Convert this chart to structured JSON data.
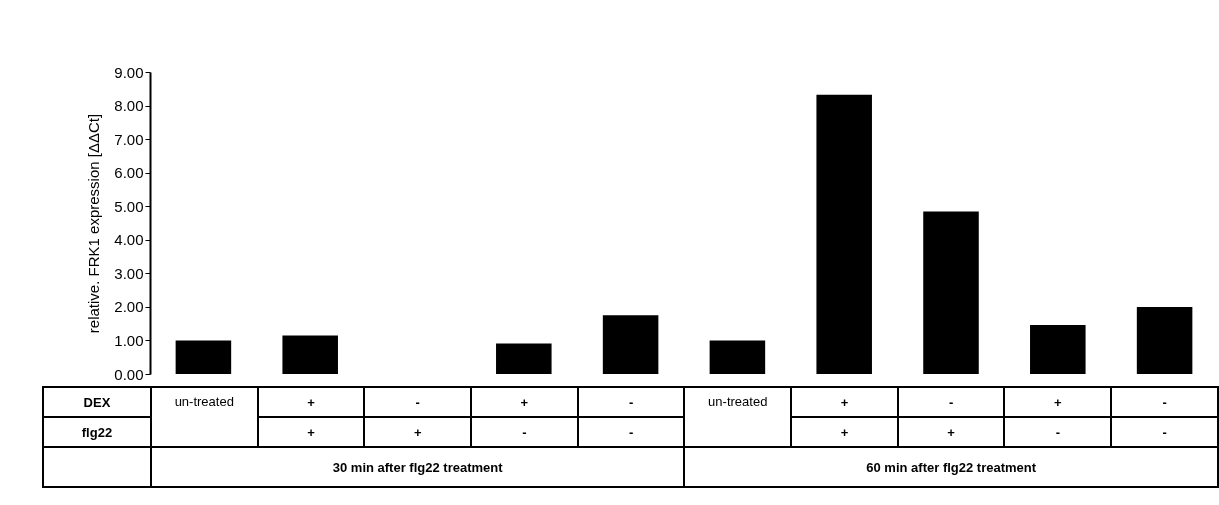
{
  "chart_data": {
    "type": "bar",
    "ylabel": "relative. FRK1 expression [ΔΔCt]",
    "categories": [
      "un-treated",
      "+",
      "-",
      "+",
      "-",
      "un-treated",
      "+",
      "-",
      "+",
      "-"
    ],
    "values": [
      1.0,
      1.15,
      null,
      0.91,
      1.75,
      1.0,
      8.32,
      4.84,
      1.46,
      2.0
    ],
    "color": "#000000",
    "ylim": [
      0,
      9
    ],
    "yticks": [
      {
        "value": 0,
        "label": "0.00"
      },
      {
        "value": 1,
        "label": "1.00"
      },
      {
        "value": 2,
        "label": "2.00"
      },
      {
        "value": 3,
        "label": "3.00"
      },
      {
        "value": 4,
        "label": "4.00"
      },
      {
        "value": 5,
        "label": "5.00"
      },
      {
        "value": 6,
        "label": "6.00"
      },
      {
        "value": 7,
        "label": "7.00"
      },
      {
        "value": 8,
        "label": "8.00"
      },
      {
        "value": 9,
        "label": "9.00"
      }
    ],
    "grid": false,
    "legend": false,
    "annotations": [
      "DEX",
      "flg22",
      "+",
      "+",
      "-",
      "-",
      "+",
      "+",
      "-",
      "-",
      "30 min after flg22 treatment",
      "60 min after flg22 treatment"
    ]
  }
}
